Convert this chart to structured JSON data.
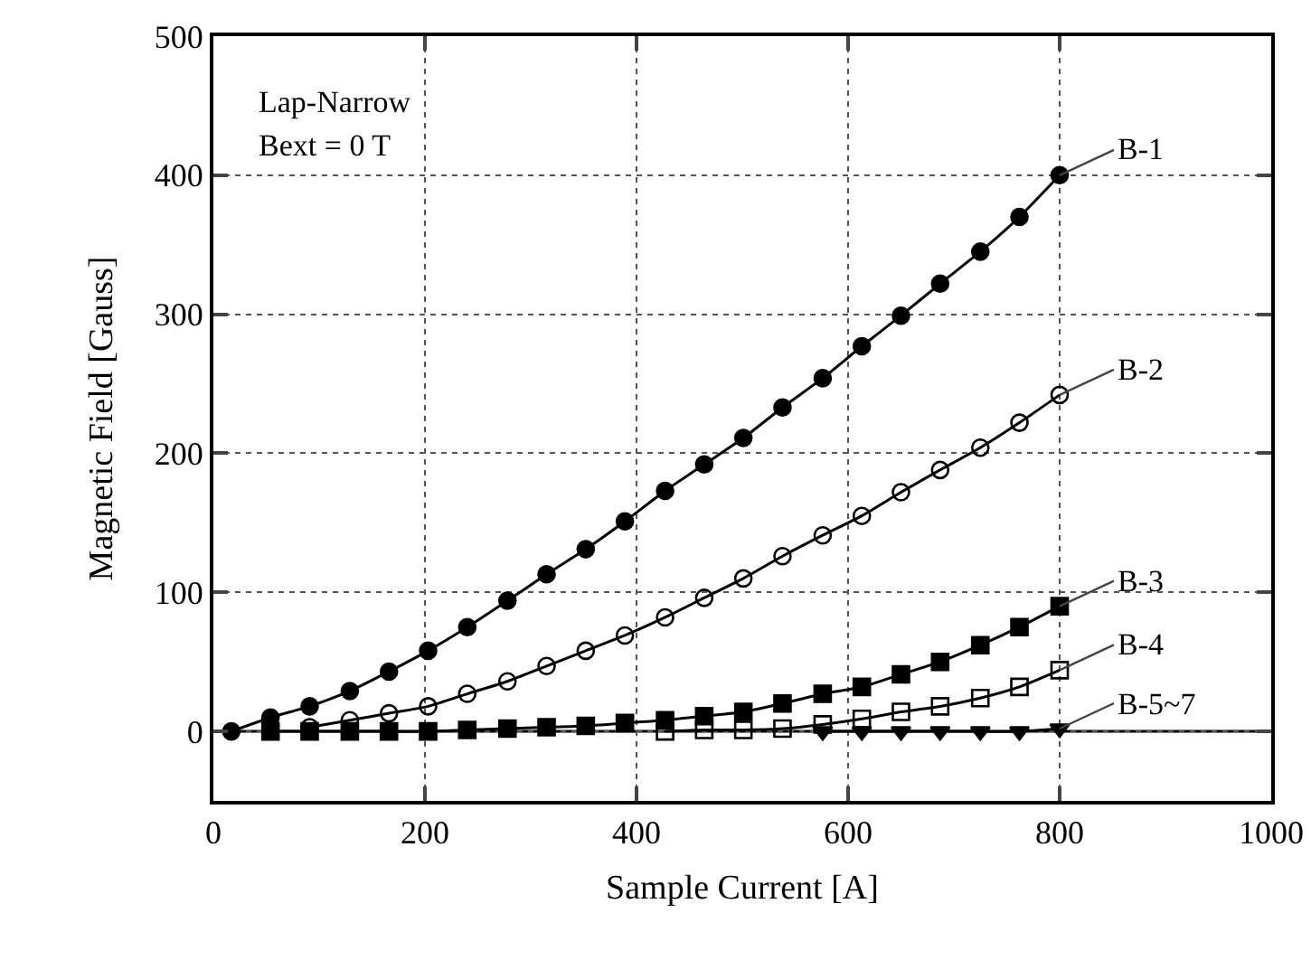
{
  "chart_data": {
    "type": "line",
    "xlabel": "Sample Current [A]",
    "ylabel": "Magnetic Field [Gauss]",
    "x": [
      17,
      54,
      91,
      129,
      166,
      203,
      240,
      278,
      315,
      352,
      389,
      427,
      464,
      501,
      538,
      576,
      613,
      650,
      687,
      725,
      762,
      800
    ],
    "series": [
      {
        "name": "B-1",
        "color": "#000000",
        "marker": "circle",
        "values": [
          0,
          10,
          18,
          29,
          43,
          58,
          75,
          94,
          113,
          131,
          151,
          173,
          192,
          211,
          233,
          254,
          277,
          299,
          322,
          345,
          370,
          400
        ]
      },
      {
        "name": "B-2",
        "color": "#000000",
        "marker": "circle",
        "values": [
          null,
          null,
          3,
          8,
          13,
          18,
          27,
          36,
          47,
          58,
          69,
          82,
          96,
          110,
          126,
          141,
          155,
          172,
          188,
          204,
          222,
          242
        ]
      },
      {
        "name": "B-3",
        "color": "#000000",
        "marker": "square",
        "values": [
          null,
          0,
          0,
          0,
          0,
          0,
          1,
          2,
          3,
          4,
          6,
          8,
          11,
          14,
          20,
          27,
          32,
          41,
          50,
          62,
          75,
          90
        ]
      },
      {
        "name": "B-4",
        "color": "#000000",
        "marker": "square",
        "values": [
          null,
          null,
          null,
          null,
          null,
          null,
          null,
          null,
          null,
          null,
          null,
          0,
          1,
          1,
          2,
          5,
          9,
          14,
          18,
          24,
          32,
          44
        ]
      },
      {
        "name": "B-5~7",
        "color": "#000000",
        "marker": "triangle",
        "values": [
          null,
          null,
          null,
          null,
          null,
          null,
          null,
          null,
          null,
          null,
          null,
          null,
          null,
          null,
          null,
          0,
          0,
          0,
          0,
          0,
          0,
          2
        ]
      }
    ],
    "annotations": [
      "Lap-Narrow",
      "Bext = 0 T"
    ],
    "xlim": [
      0,
      1000
    ],
    "xticks": [
      0,
      200,
      400,
      600,
      800,
      1000
    ],
    "ylim": [
      -50,
      500
    ],
    "yticks": [
      0,
      100,
      200,
      300,
      400,
      500
    ],
    "grid": true,
    "legend": false,
    "line_style": "solid"
  }
}
